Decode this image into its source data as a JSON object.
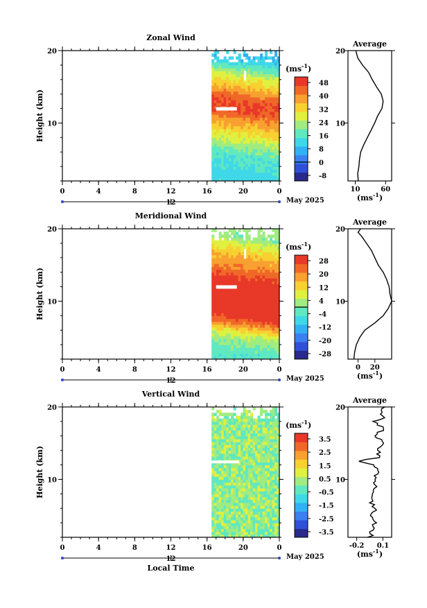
{
  "chart_data": [
    {
      "type": "heatmap",
      "title": "Zonal Wind",
      "ylabel": "Height (km)",
      "xlabel": "",
      "x_ticks": [
        "0",
        "4",
        "8",
        "12",
        "16",
        "20",
        "0"
      ],
      "y_ticks": [
        "20",
        "10"
      ],
      "ylim": [
        2,
        20
      ],
      "xlim": [
        0,
        24
      ],
      "date_marker": "12",
      "date_label": "May 2025",
      "colorbar": {
        "unit_base": "(ms",
        "unit_exp": "-1",
        "unit_end": ")",
        "ticks": [
          "48",
          "40",
          "32",
          "24",
          "16",
          "8",
          "0",
          "-8"
        ],
        "vmin": -12,
        "vmax": 52
      },
      "data_start_hour": 16.5,
      "profile_values": [
        [
          2,
          15
        ],
        [
          3,
          14
        ],
        [
          4,
          16
        ],
        [
          5,
          17
        ],
        [
          6,
          19
        ],
        [
          7,
          24
        ],
        [
          8,
          30
        ],
        [
          9,
          36
        ],
        [
          10,
          42
        ],
        [
          11,
          47
        ],
        [
          12,
          54
        ],
        [
          13,
          56
        ],
        [
          14,
          53
        ],
        [
          15,
          45
        ],
        [
          16,
          38
        ],
        [
          17,
          32
        ],
        [
          18,
          22
        ],
        [
          19,
          14
        ],
        [
          20,
          11
        ]
      ],
      "average": {
        "title": "Average",
        "x_ticks": [
          "10",
          "60"
        ],
        "xlim": [
          -2,
          70
        ],
        "y_ticks": [
          "20",
          "10"
        ],
        "xlabel_base": "(ms",
        "xlabel_exp": "-1",
        "xlabel_end": ")"
      }
    },
    {
      "type": "heatmap",
      "title": "Meridional Wind",
      "ylabel": "Height (km)",
      "x_ticks": [
        "0",
        "4",
        "8",
        "12",
        "16",
        "20",
        "0"
      ],
      "y_ticks": [
        "20",
        "10"
      ],
      "ylim": [
        2,
        20
      ],
      "xlim": [
        0,
        24
      ],
      "date_marker": "12",
      "date_label": "May 2025",
      "colorbar": {
        "unit_base": "(ms",
        "unit_exp": "-1",
        "unit_end": ")",
        "ticks": [
          "28",
          "20",
          "12",
          "4",
          "-4",
          "-12",
          "-20",
          "-28"
        ],
        "vmin": -32,
        "vmax": 32
      },
      "data_start_hour": 16.5,
      "profile_values": [
        [
          2,
          -5
        ],
        [
          3,
          -4
        ],
        [
          4,
          -2
        ],
        [
          5,
          2
        ],
        [
          6,
          8
        ],
        [
          7,
          20
        ],
        [
          8,
          30
        ],
        [
          9,
          36
        ],
        [
          10,
          40
        ],
        [
          11,
          38
        ],
        [
          12,
          37
        ],
        [
          13,
          34
        ],
        [
          14,
          30
        ],
        [
          15,
          24
        ],
        [
          16,
          20
        ],
        [
          17,
          16
        ],
        [
          18,
          10
        ],
        [
          19,
          4
        ],
        [
          19.5,
          0
        ],
        [
          20,
          3
        ]
      ],
      "average": {
        "title": "Average",
        "x_ticks": [
          "0",
          "20"
        ],
        "xlim": [
          -12,
          40
        ],
        "y_ticks": [
          "20",
          "10"
        ],
        "xlabel_base": "(ms",
        "xlabel_exp": "-1",
        "xlabel_end": ")"
      }
    },
    {
      "type": "heatmap",
      "title": "Vertical Wind",
      "ylabel": "Height (km)",
      "xlabel": "Local Time",
      "x_ticks": [
        "0",
        "4",
        "8",
        "12",
        "16",
        "20",
        "0"
      ],
      "y_ticks": [
        "20",
        "10"
      ],
      "ylim": [
        2,
        20
      ],
      "xlim": [
        0,
        24
      ],
      "date_marker": "12",
      "date_label": "May 2025",
      "colorbar": {
        "unit_base": "(ms",
        "unit_exp": "-1",
        "unit_end": ")",
        "ticks": [
          "3.5",
          "2.5",
          "1.5",
          "0.5",
          "-0.5",
          "-1.5",
          "-2.5",
          "-3.5"
        ],
        "vmin": -4,
        "vmax": 4
      },
      "data_start_hour": 16.5,
      "profile_values": [
        [
          2,
          -0.05
        ],
        [
          3,
          -0.02
        ],
        [
          4,
          0.0
        ],
        [
          5,
          -0.03
        ],
        [
          6,
          0.02
        ],
        [
          7,
          -0.04
        ],
        [
          8,
          0.0
        ],
        [
          9,
          0.03
        ],
        [
          10,
          0.01
        ],
        [
          11,
          0.05
        ],
        [
          12,
          0.02
        ],
        [
          12.6,
          -0.22
        ],
        [
          13,
          0.08
        ],
        [
          14,
          0.04
        ],
        [
          15,
          0.12
        ],
        [
          16,
          0.02
        ],
        [
          17,
          0.1
        ],
        [
          18,
          0.0
        ],
        [
          18.5,
          0.12
        ],
        [
          19,
          0.05
        ],
        [
          20,
          0.1
        ]
      ],
      "average": {
        "title": "Average",
        "x_ticks": [
          "-0.2",
          "0.1"
        ],
        "xlim": [
          -0.3,
          0.2
        ],
        "y_ticks": [
          "20",
          "10"
        ],
        "xlabel_base": "(ms",
        "xlabel_exp": "-1",
        "xlabel_end": ")"
      }
    }
  ]
}
